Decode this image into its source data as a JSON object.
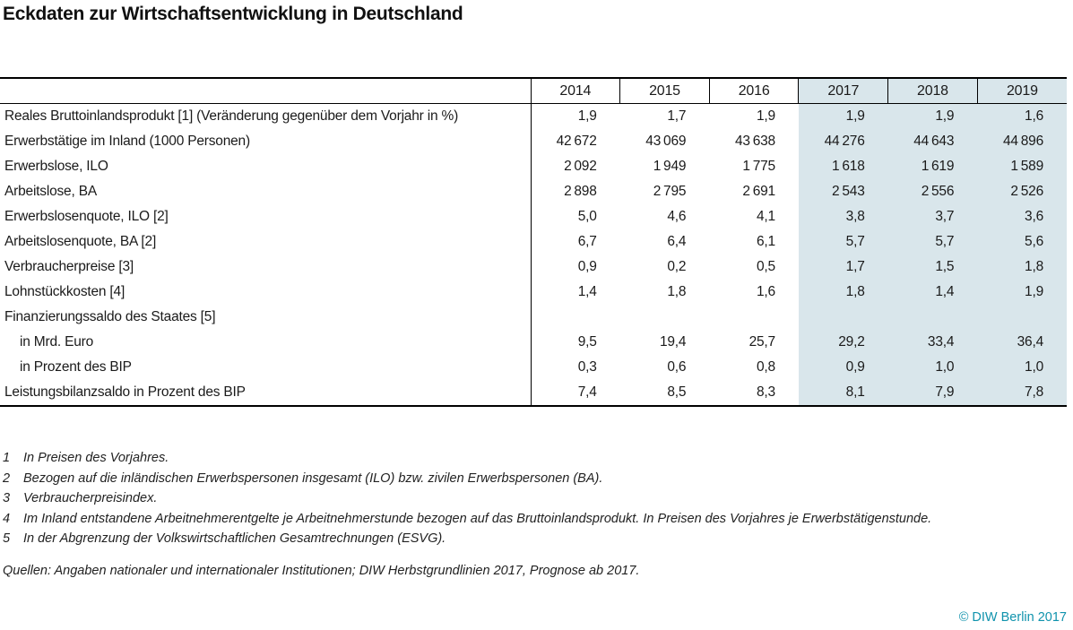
{
  "title": "Eckdaten zur Wirtschaftsentwicklung in Deutschland",
  "table": {
    "years": [
      "2014",
      "2015",
      "2016",
      "2017",
      "2018",
      "2019"
    ],
    "highlight_from_index": 3,
    "highlight_color": "#d9e6eb",
    "rows": [
      {
        "label": "Reales Bruttoinlandsprodukt [1] (Veränderung gegenüber dem Vorjahr in %)",
        "indent": false,
        "values": [
          "1,9",
          "1,7",
          "1,9",
          "1,9",
          "1,9",
          "1,6"
        ]
      },
      {
        "label": "Erwerbstätige im Inland (1000 Personen)",
        "indent": false,
        "values": [
          "42 672",
          "43 069",
          "43 638",
          "44 276",
          "44 643",
          "44 896"
        ]
      },
      {
        "label": "Erwerbslose, ILO",
        "indent": false,
        "values": [
          "2 092",
          "1 949",
          "1 775",
          "1 618",
          "1 619",
          "1 589"
        ]
      },
      {
        "label": "Arbeitslose, BA",
        "indent": false,
        "values": [
          "2 898",
          "2 795",
          "2 691",
          "2 543",
          "2 556",
          "2 526"
        ]
      },
      {
        "label": "Erwerbslosenquote, ILO [2]",
        "indent": false,
        "values": [
          "5,0",
          "4,6",
          "4,1",
          "3,8",
          "3,7",
          "3,6"
        ]
      },
      {
        "label": "Arbeitslosenquote, BA [2]",
        "indent": false,
        "values": [
          "6,7",
          "6,4",
          "6,1",
          "5,7",
          "5,7",
          "5,6"
        ]
      },
      {
        "label": "Verbraucherpreise [3]",
        "indent": false,
        "values": [
          "0,9",
          "0,2",
          "0,5",
          "1,7",
          "1,5",
          "1,8"
        ]
      },
      {
        "label": "Lohnstückkosten [4]",
        "indent": false,
        "values": [
          "1,4",
          "1,8",
          "1,6",
          "1,8",
          "1,4",
          "1,9"
        ]
      },
      {
        "label": "Finanzierungssaldo des Staates [5]",
        "indent": false,
        "values": [
          "",
          "",
          "",
          "",
          "",
          ""
        ]
      },
      {
        "label": "in Mrd. Euro",
        "indent": true,
        "values": [
          "9,5",
          "19,4",
          "25,7",
          "29,2",
          "33,4",
          "36,4"
        ]
      },
      {
        "label": "in Prozent des BIP",
        "indent": true,
        "values": [
          "0,3",
          "0,6",
          "0,8",
          "0,9",
          "1,0",
          "1,0"
        ]
      },
      {
        "label": "Leistungsbilanzsaldo in Prozent des BIP",
        "indent": false,
        "values": [
          "7,4",
          "8,5",
          "8,3",
          "8,1",
          "7,9",
          "7,8"
        ]
      }
    ]
  },
  "footnotes": [
    {
      "num": "1",
      "text": "In Preisen des Vorjahres."
    },
    {
      "num": "2",
      "text": "Bezogen auf die inländischen Erwerbspersonen insgesamt (ILO) bzw. zivilen Erwerbspersonen (BA)."
    },
    {
      "num": "3",
      "text": "Verbraucherpreisindex."
    },
    {
      "num": "4",
      "text": "Im Inland entstandene Arbeitnehmerentgelte je Arbeitnehmerstunde bezogen auf das Bruttoinlandsprodukt. In Preisen des Vorjahres je Erwerbstätigenstunde."
    },
    {
      "num": "5",
      "text": "In der Abgrenzung der Volkswirtschaftlichen Gesamtrechnungen (ESVG)."
    }
  ],
  "sources": "Quellen: Angaben nationaler und internationaler Institutionen; DIW Herbstgrundlinien 2017, Prognose ab 2017.",
  "copyright": "© DIW Berlin 2017",
  "colors": {
    "highlight": "#d9e6eb",
    "accent": "#1093ad",
    "rule": "#000000"
  }
}
